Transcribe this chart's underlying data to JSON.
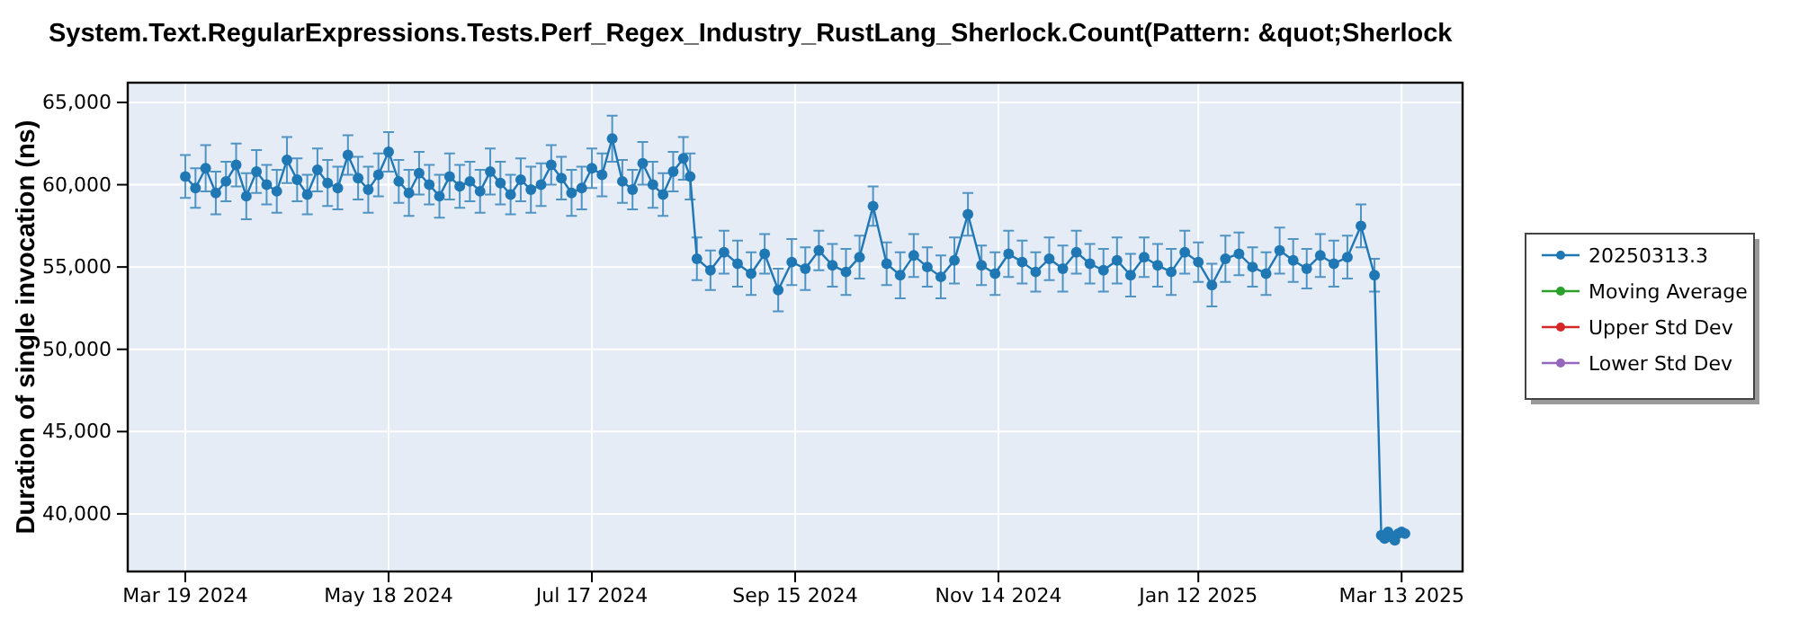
{
  "chart_data": {
    "type": "line",
    "title": "System.Text.RegularExpressions.Tests.Perf_Regex_Industry_RustLang_Sherlock.Count(Pattern: &quot;Sherlock",
    "ylabel": "Duration of single invocation (ns)",
    "x": [
      "2024-03-19",
      "2024-03-22",
      "2024-03-25",
      "2024-03-28",
      "2024-03-31",
      "2024-04-03",
      "2024-04-06",
      "2024-04-09",
      "2024-04-12",
      "2024-04-15",
      "2024-04-18",
      "2024-04-21",
      "2024-04-24",
      "2024-04-27",
      "2024-04-30",
      "2024-05-03",
      "2024-05-06",
      "2024-05-09",
      "2024-05-12",
      "2024-05-15",
      "2024-05-18",
      "2024-05-21",
      "2024-05-24",
      "2024-05-27",
      "2024-05-30",
      "2024-06-02",
      "2024-06-05",
      "2024-06-08",
      "2024-06-11",
      "2024-06-14",
      "2024-06-17",
      "2024-06-20",
      "2024-06-23",
      "2024-06-26",
      "2024-06-29",
      "2024-07-02",
      "2024-07-05",
      "2024-07-08",
      "2024-07-11",
      "2024-07-14",
      "2024-07-17",
      "2024-07-20",
      "2024-07-23",
      "2024-07-26",
      "2024-07-29",
      "2024-08-01",
      "2024-08-04",
      "2024-08-07",
      "2024-08-10",
      "2024-08-13",
      "2024-08-15",
      "2024-08-17",
      "2024-08-21",
      "2024-08-25",
      "2024-08-29",
      "2024-09-02",
      "2024-09-06",
      "2024-09-10",
      "2024-09-14",
      "2024-09-18",
      "2024-09-22",
      "2024-09-26",
      "2024-09-30",
      "2024-10-04",
      "2024-10-08",
      "2024-10-12",
      "2024-10-16",
      "2024-10-20",
      "2024-10-24",
      "2024-10-28",
      "2024-11-01",
      "2024-11-05",
      "2024-11-09",
      "2024-11-13",
      "2024-11-17",
      "2024-11-21",
      "2024-11-25",
      "2024-11-29",
      "2024-12-03",
      "2024-12-07",
      "2024-12-11",
      "2024-12-15",
      "2024-12-19",
      "2024-12-23",
      "2024-12-27",
      "2024-12-31",
      "2025-01-04",
      "2025-01-08",
      "2025-01-12",
      "2025-01-16",
      "2025-01-20",
      "2025-01-24",
      "2025-01-28",
      "2025-02-01",
      "2025-02-05",
      "2025-02-09",
      "2025-02-13",
      "2025-02-17",
      "2025-02-21",
      "2025-02-25",
      "2025-03-01",
      "2025-03-05",
      "2025-03-07",
      "2025-03-08",
      "2025-03-09",
      "2025-03-10",
      "2025-03-11",
      "2025-03-12",
      "2025-03-13",
      "2025-03-14"
    ],
    "series": [
      {
        "name": "20250313.3",
        "color": "#1f77b4",
        "values": [
          60500,
          59800,
          61000,
          59500,
          60200,
          61200,
          59300,
          60800,
          60000,
          59600,
          61500,
          60300,
          59400,
          60900,
          60100,
          59800,
          61800,
          60400,
          59700,
          60600,
          62000,
          60200,
          59500,
          60700,
          60000,
          59300,
          60500,
          59900,
          60200,
          59600,
          60800,
          60100,
          59400,
          60300,
          59700,
          60000,
          61200,
          60400,
          59500,
          59800,
          61000,
          60600,
          62800,
          60200,
          59700,
          61300,
          60000,
          59400,
          60800,
          61600,
          60500,
          55500,
          54800,
          55900,
          55200,
          54600,
          55800,
          53600,
          55300,
          54900,
          56000,
          55100,
          54700,
          55600,
          58700,
          55200,
          54500,
          55700,
          55000,
          54400,
          55400,
          58200,
          55100,
          54600,
          55800,
          55300,
          54700,
          55500,
          54900,
          55900,
          55200,
          54800,
          55400,
          54500,
          55600,
          55100,
          54700,
          55900,
          55300,
          53900,
          55500,
          55800,
          55000,
          54600,
          56000,
          55400,
          54900,
          55700,
          55200,
          55600,
          57500,
          54500,
          38700,
          38500,
          38900,
          38600,
          38400,
          38800,
          38900,
          38800
        ],
        "errors": [
          1300,
          1200,
          1400,
          1300,
          1200,
          1300,
          1400,
          1300,
          1200,
          1300,
          1400,
          1300,
          1200,
          1300,
          1400,
          1300,
          1200,
          1300,
          1400,
          1300,
          1200,
          1300,
          1400,
          1300,
          1200,
          1300,
          1400,
          1300,
          1200,
          1300,
          1400,
          1300,
          1200,
          1300,
          1400,
          1300,
          1200,
          1300,
          1400,
          1300,
          1200,
          1300,
          1400,
          1300,
          1200,
          1300,
          1400,
          1300,
          1200,
          1300,
          1400,
          1300,
          1200,
          1300,
          1400,
          1300,
          1200,
          1300,
          1400,
          1300,
          1200,
          1300,
          1400,
          1300,
          1200,
          1300,
          1400,
          1300,
          1200,
          1300,
          1400,
          1300,
          1200,
          1300,
          1400,
          1300,
          1200,
          1300,
          1400,
          1300,
          1200,
          1300,
          1400,
          1300,
          1200,
          1300,
          1400,
          1300,
          1200,
          1300,
          1400,
          1300,
          1200,
          1300,
          1400,
          1300,
          1200,
          1300,
          1400,
          1300,
          1300,
          1000,
          null,
          null,
          null,
          null,
          null,
          null,
          null,
          null
        ]
      },
      {
        "name": "Moving Average",
        "color": "#2ca02c",
        "values": [
          null,
          null,
          null,
          null,
          null,
          null,
          null,
          null,
          null,
          null,
          null,
          null,
          null,
          null,
          null,
          null,
          null,
          null,
          null,
          null,
          null,
          null,
          null,
          null,
          null,
          null,
          null,
          null,
          null,
          null,
          null,
          null,
          null,
          null,
          null,
          null,
          null,
          null,
          null,
          null,
          null,
          null,
          null,
          null,
          null,
          null,
          null,
          null,
          null,
          null,
          null,
          null,
          null,
          null,
          null,
          null,
          null,
          null,
          null,
          null,
          null,
          null,
          null,
          null,
          null,
          null,
          null,
          null,
          null,
          null,
          null,
          null,
          null,
          null,
          null,
          null,
          null,
          null,
          null,
          null,
          null,
          null,
          null,
          null,
          null,
          null,
          null,
          null,
          null,
          null,
          null,
          null,
          null,
          null,
          null,
          null,
          null,
          null,
          null,
          null,
          null,
          null,
          null,
          null,
          null,
          null,
          null,
          null,
          null,
          null
        ]
      },
      {
        "name": "Upper Std Dev",
        "color": "#d62728",
        "values": [
          null,
          null,
          null,
          null,
          null,
          null,
          null,
          null,
          null,
          null,
          null,
          null,
          null,
          null,
          null,
          null,
          null,
          null,
          null,
          null,
          null,
          null,
          null,
          null,
          null,
          null,
          null,
          null,
          null,
          null,
          null,
          null,
          null,
          null,
          null,
          null,
          null,
          null,
          null,
          null,
          null,
          null,
          null,
          null,
          null,
          null,
          null,
          null,
          null,
          null,
          null,
          null,
          null,
          null,
          null,
          null,
          null,
          null,
          null,
          null,
          null,
          null,
          null,
          null,
          null,
          null,
          null,
          null,
          null,
          null,
          null,
          null,
          null,
          null,
          null,
          null,
          null,
          null,
          null,
          null,
          null,
          null,
          null,
          null,
          null,
          null,
          null,
          null,
          null,
          null,
          null,
          null,
          null,
          null,
          null,
          null,
          null,
          null,
          null,
          null,
          null,
          null,
          null,
          null,
          null,
          null,
          null,
          null,
          null,
          null
        ]
      },
      {
        "name": "Lower Std Dev",
        "color": "#9467bd",
        "values": [
          null,
          null,
          null,
          null,
          null,
          null,
          null,
          null,
          null,
          null,
          null,
          null,
          null,
          null,
          null,
          null,
          null,
          null,
          null,
          null,
          null,
          null,
          null,
          null,
          null,
          null,
          null,
          null,
          null,
          null,
          null,
          null,
          null,
          null,
          null,
          null,
          null,
          null,
          null,
          null,
          null,
          null,
          null,
          null,
          null,
          null,
          null,
          null,
          null,
          null,
          null,
          null,
          null,
          null,
          null,
          null,
          null,
          null,
          null,
          null,
          null,
          null,
          null,
          null,
          null,
          null,
          null,
          null,
          null,
          null,
          null,
          null,
          null,
          null,
          null,
          null,
          null,
          null,
          null,
          null,
          null,
          null,
          null,
          null,
          null,
          null,
          null,
          null,
          null,
          null,
          null,
          null,
          null,
          null,
          null,
          null,
          null,
          null,
          null,
          null,
          null,
          null,
          null,
          null,
          null,
          null,
          null,
          null,
          null,
          null
        ]
      }
    ],
    "xlim": [
      "2024-03-02",
      "2025-03-31"
    ],
    "xticks": [
      {
        "value": "2024-03-19",
        "label": "Mar 19 2024"
      },
      {
        "value": "2024-05-18",
        "label": "May 18 2024"
      },
      {
        "value": "2024-07-17",
        "label": "Jul 17 2024"
      },
      {
        "value": "2024-09-15",
        "label": "Sep 15 2024"
      },
      {
        "value": "2024-11-14",
        "label": "Nov 14 2024"
      },
      {
        "value": "2025-01-12",
        "label": "Jan 12 2025"
      },
      {
        "value": "2025-03-13",
        "label": "Mar 13 2025"
      }
    ],
    "ylim": [
      36500,
      66200
    ],
    "yticks": [
      {
        "value": 40000,
        "label": "40,000"
      },
      {
        "value": 45000,
        "label": "45,000"
      },
      {
        "value": 50000,
        "label": "50,000"
      },
      {
        "value": 55000,
        "label": "55,000"
      },
      {
        "value": 60000,
        "label": "60,000"
      },
      {
        "value": 65000,
        "label": "65,000"
      }
    ],
    "grid": true,
    "legend": "right",
    "marker": "circle",
    "line_style": "solid"
  }
}
